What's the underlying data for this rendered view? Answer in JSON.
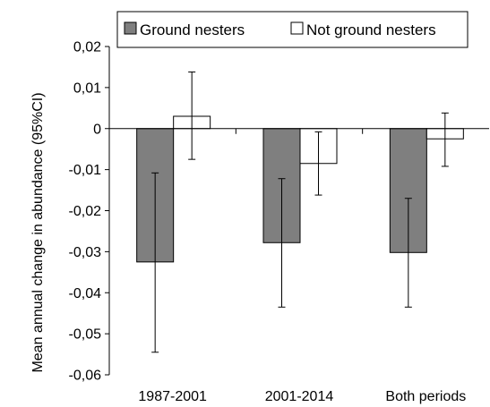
{
  "chart_data": {
    "type": "bar",
    "categories": [
      "1987-2001",
      "2001-2014",
      "Both periods"
    ],
    "series": [
      {
        "name": "Ground nesters",
        "values": [
          -0.0325,
          -0.0278,
          -0.0302
        ],
        "ci_lower": [
          -0.0545,
          -0.0435,
          -0.0435
        ],
        "ci_upper": [
          -0.0108,
          -0.0122,
          -0.017
        ],
        "fill": "#7f7f7f"
      },
      {
        "name": "Not ground nesters",
        "values": [
          0.003,
          -0.0085,
          -0.0025
        ],
        "ci_lower": [
          -0.0075,
          -0.0162,
          -0.0092
        ],
        "ci_upper": [
          0.0138,
          -0.0008,
          0.0038
        ],
        "fill": "#ffffff"
      }
    ],
    "ylabel": "Mean annual change in abundance (95%CI)",
    "ylim": [
      -0.06,
      0.02
    ],
    "yticks": [
      "0,02",
      "0,01",
      "0",
      "-0,01",
      "-0,02",
      "-0,03",
      "-0,04",
      "-0,05",
      "-0,06"
    ],
    "yticks_values": [
      0.02,
      0.01,
      0,
      -0.01,
      -0.02,
      -0.03,
      -0.04,
      -0.05,
      -0.06
    ],
    "legend_position": "top",
    "grid": false
  }
}
